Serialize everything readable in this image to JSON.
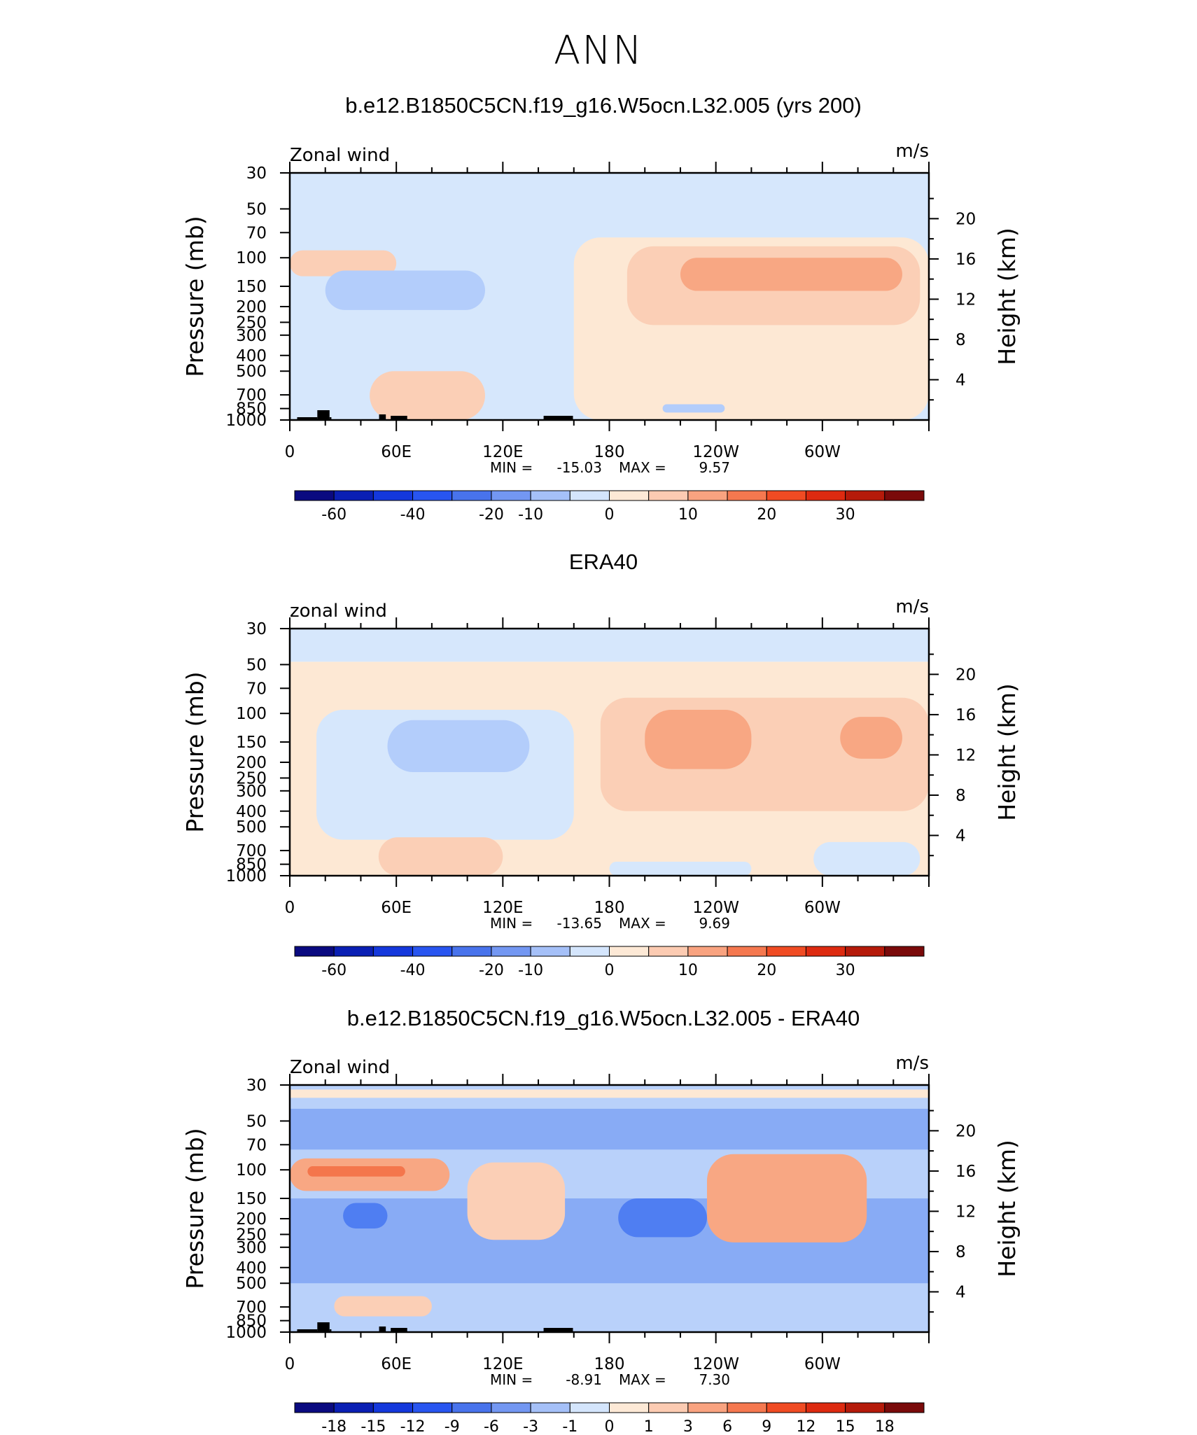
{
  "page_title": "ANN",
  "colors": {
    "abs_scale": [
      "#0a0a80",
      "#0a1fb4",
      "#1438dc",
      "#2855f0",
      "#4873ec",
      "#7397f2",
      "#a5c0f8",
      "#d4e5fc",
      "#fde9d6",
      "#fccbb2",
      "#f9a380",
      "#f5784f",
      "#f04b23",
      "#dd2a10",
      "#b51a0a",
      "#7a0a0a"
    ],
    "diff_scale": [
      "#0a0a80",
      "#0a1fb4",
      "#1438dc",
      "#2855f0",
      "#4873ec",
      "#7397f2",
      "#a5c0f8",
      "#d4e5fc",
      "#fde9d6",
      "#fccbb2",
      "#f9a380",
      "#f5784f",
      "#f04b23",
      "#dd2a10",
      "#b51a0a",
      "#7a0a0a"
    ]
  },
  "chart_data": [
    {
      "type": "contour",
      "title": "b.e12.B1850C5CN.f19_g16.W5ocn.L32.005 (yrs 200)",
      "left_label": "Zonal wind",
      "units": "m/s",
      "ylabel_left": "Pressure (mb)",
      "ylabel_right": "Height (km)",
      "pressure_ticks": [
        "30",
        "50",
        "70",
        "100",
        "150",
        "200",
        "250",
        "300",
        "400",
        "500",
        "700",
        "850",
        "1000"
      ],
      "height_ticks": [
        "20",
        "16",
        "12",
        "8",
        "4"
      ],
      "x_ticks": [
        "0",
        "60E",
        "120E",
        "180",
        "120W",
        "60W"
      ],
      "xlim": [
        0,
        360
      ],
      "stats": {
        "min_label": "MIN =",
        "min": "-15.03",
        "max_label": "MAX =",
        "max": "9.57"
      },
      "colorbar_labels": [
        "-60",
        "-40",
        "-20",
        "-10",
        "0",
        "10",
        "20",
        "30"
      ],
      "regions": [
        {
          "level": "-10 to 0",
          "lon": [
            0,
            360
          ],
          "p": [
            1000,
            30
          ]
        },
        {
          "level": "0 to 5",
          "lon": [
            160,
            360
          ],
          "p": [
            1000,
            75
          ]
        },
        {
          "level": "5 to 10",
          "lon": [
            0,
            60
          ],
          "p": [
            130,
            90
          ]
        },
        {
          "level": "5 to 10",
          "lon": [
            190,
            355
          ],
          "p": [
            260,
            85
          ]
        },
        {
          "level": "10 to 15",
          "lon": [
            220,
            345
          ],
          "p": [
            160,
            100
          ]
        },
        {
          "level": "5 to 10",
          "lon": [
            45,
            110
          ],
          "p": [
            1000,
            500
          ]
        },
        {
          "level": "-15 to -10",
          "lon": [
            20,
            110
          ],
          "p": [
            210,
            120
          ]
        },
        {
          "level": "-15 to -10",
          "lon": [
            210,
            245
          ],
          "p": [
            900,
            800
          ]
        }
      ]
    },
    {
      "type": "contour",
      "title": "ERA40",
      "left_label": "zonal wind",
      "units": "m/s",
      "ylabel_left": "Pressure (mb)",
      "ylabel_right": "Height (km)",
      "pressure_ticks": [
        "30",
        "50",
        "70",
        "100",
        "150",
        "200",
        "250",
        "300",
        "400",
        "500",
        "700",
        "850",
        "1000"
      ],
      "height_ticks": [
        "20",
        "16",
        "12",
        "8",
        "4"
      ],
      "x_ticks": [
        "0",
        "60E",
        "120E",
        "180",
        "120W",
        "60W"
      ],
      "xlim": [
        0,
        360
      ],
      "stats": {
        "min_label": "MIN =",
        "min": "-13.65",
        "max_label": "MAX =",
        "max": "9.69"
      },
      "colorbar_labels": [
        "-60",
        "-40",
        "-20",
        "-10",
        "0",
        "10",
        "20",
        "30"
      ],
      "regions": [
        {
          "level": "0 to 5",
          "lon": [
            0,
            360
          ],
          "p": [
            1000,
            48
          ]
        },
        {
          "level": "-10 to 0",
          "lon": [
            0,
            360
          ],
          "p": [
            48,
            30
          ]
        },
        {
          "level": "-10 to 0",
          "lon": [
            15,
            160
          ],
          "p": [
            600,
            95
          ]
        },
        {
          "level": "-15 to -10",
          "lon": [
            55,
            135
          ],
          "p": [
            230,
            110
          ]
        },
        {
          "level": "5 to 10",
          "lon": [
            175,
            360
          ],
          "p": [
            400,
            80
          ]
        },
        {
          "level": "10 to 15",
          "lon": [
            200,
            260
          ],
          "p": [
            220,
            95
          ]
        },
        {
          "level": "10 to 15",
          "lon": [
            310,
            345
          ],
          "p": [
            190,
            105
          ]
        },
        {
          "level": "5 to 10",
          "lon": [
            50,
            120
          ],
          "p": [
            1000,
            580
          ]
        },
        {
          "level": "-10 to 0",
          "lon": [
            180,
            260
          ],
          "p": [
            1000,
            820
          ]
        },
        {
          "level": "-10 to 0",
          "lon": [
            295,
            355
          ],
          "p": [
            1000,
            620
          ]
        }
      ]
    },
    {
      "type": "contour",
      "title": "b.e12.B1850C5CN.f19_g16.W5ocn.L32.005 - ERA40",
      "left_label": "Zonal wind",
      "units": "m/s",
      "ylabel_left": "Pressure (mb)",
      "ylabel_right": "Height (km)",
      "pressure_ticks": [
        "30",
        "50",
        "70",
        "100",
        "150",
        "200",
        "250",
        "300",
        "400",
        "500",
        "700",
        "850",
        "1000"
      ],
      "height_ticks": [
        "20",
        "16",
        "12",
        "8",
        "4"
      ],
      "x_ticks": [
        "0",
        "60E",
        "120E",
        "180",
        "120W",
        "60W"
      ],
      "xlim": [
        0,
        360
      ],
      "stats": {
        "min_label": "MIN =",
        "min": "-8.91",
        "max_label": "MAX =",
        "max": "7.30"
      },
      "colorbar_labels": [
        "-18",
        "-15",
        "-12",
        "-9",
        "-6",
        "-3",
        "-1",
        "0",
        "1",
        "3",
        "6",
        "9",
        "12",
        "15",
        "18"
      ],
      "regions": [
        {
          "level": "-3 to -1",
          "lon": [
            0,
            360
          ],
          "p": [
            1000,
            30
          ]
        },
        {
          "level": "-6 to -3",
          "lon": [
            0,
            360
          ],
          "p": [
            75,
            42
          ]
        },
        {
          "level": "-3 to -1",
          "lon": [
            0,
            360
          ],
          "p": [
            42,
            36
          ]
        },
        {
          "level": "0 to 1",
          "lon": [
            0,
            360
          ],
          "p": [
            36,
            32
          ]
        },
        {
          "level": "-6 to -3",
          "lon": [
            0,
            360
          ],
          "p": [
            500,
            150
          ]
        },
        {
          "level": "-9 to -6",
          "lon": [
            30,
            55
          ],
          "p": [
            230,
            160
          ]
        },
        {
          "level": "-9 to -6",
          "lon": [
            185,
            235
          ],
          "p": [
            260,
            150
          ]
        },
        {
          "level": "3 to 6",
          "lon": [
            0,
            90
          ],
          "p": [
            135,
            85
          ]
        },
        {
          "level": "6 to 9",
          "lon": [
            10,
            65
          ],
          "p": [
            110,
            95
          ]
        },
        {
          "level": "1 to 3",
          "lon": [
            100,
            155
          ],
          "p": [
            270,
            90
          ]
        },
        {
          "level": "3 to 6",
          "lon": [
            235,
            325
          ],
          "p": [
            280,
            80
          ]
        },
        {
          "level": "1 to 3",
          "lon": [
            25,
            80
          ],
          "p": [
            800,
            600
          ]
        }
      ]
    }
  ]
}
